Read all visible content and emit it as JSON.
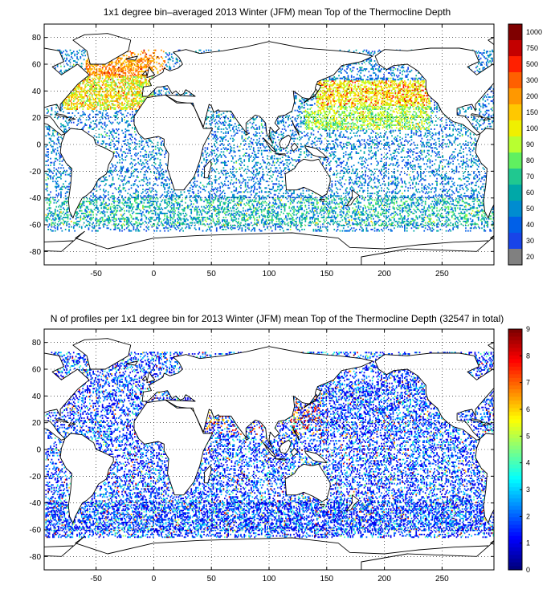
{
  "chart_data": [
    {
      "type": "heatmap",
      "title": "1x1 degree bin–averaged 2013 Winter (JFM) mean Top of the Thermocline Depth",
      "x_ticks": [
        "-50",
        "0",
        "50",
        "100",
        "150",
        "200",
        "250"
      ],
      "x_tick_values": [
        -50,
        0,
        50,
        100,
        150,
        200,
        250
      ],
      "y_ticks": [
        "80",
        "60",
        "40",
        "20",
        "0",
        "-20",
        "-40",
        "-60",
        "-80"
      ],
      "y_tick_values": [
        80,
        60,
        40,
        20,
        0,
        -20,
        -40,
        -60,
        -80
      ],
      "xlim": [
        -95,
        295
      ],
      "ylim": [
        -90,
        90
      ],
      "grid": true,
      "colorbar": {
        "labels": [
          "1000",
          "750",
          "500",
          "300",
          "200",
          "150",
          "100",
          "90",
          "80",
          "70",
          "60",
          "50",
          "40",
          "30",
          "20"
        ],
        "colors": [
          "#7f0000",
          "#c40000",
          "#ff2000",
          "#ff6000",
          "#ff9800",
          "#ffc800",
          "#f0f000",
          "#b8ff30",
          "#60f060",
          "#20c890",
          "#00a8a8",
          "#008cd0",
          "#0060e8",
          "#1844e8",
          "#808080"
        ]
      }
    },
    {
      "type": "heatmap",
      "title": "N of profiles per 1x1 degree bin for 2013 Winter (JFM) mean Top of the Thermocline Depth  (32547 in total)",
      "x_ticks": [
        "-50",
        "0",
        "50",
        "100",
        "150",
        "200",
        "250"
      ],
      "x_tick_values": [
        -50,
        0,
        50,
        100,
        150,
        200,
        250
      ],
      "y_ticks": [
        "80",
        "60",
        "40",
        "20",
        "0",
        "-20",
        "-40",
        "-60",
        "-80"
      ],
      "y_tick_values": [
        80,
        60,
        40,
        20,
        0,
        -20,
        -40,
        -60,
        -80
      ],
      "xlim": [
        -95,
        295
      ],
      "ylim": [
        -90,
        90
      ],
      "grid": true,
      "total_profiles": 32547,
      "colorbar": {
        "labels": [
          "9",
          "8",
          "7",
          "6",
          "5",
          "4",
          "3",
          "2",
          "1",
          "0"
        ],
        "range": [
          0,
          9
        ]
      }
    }
  ]
}
